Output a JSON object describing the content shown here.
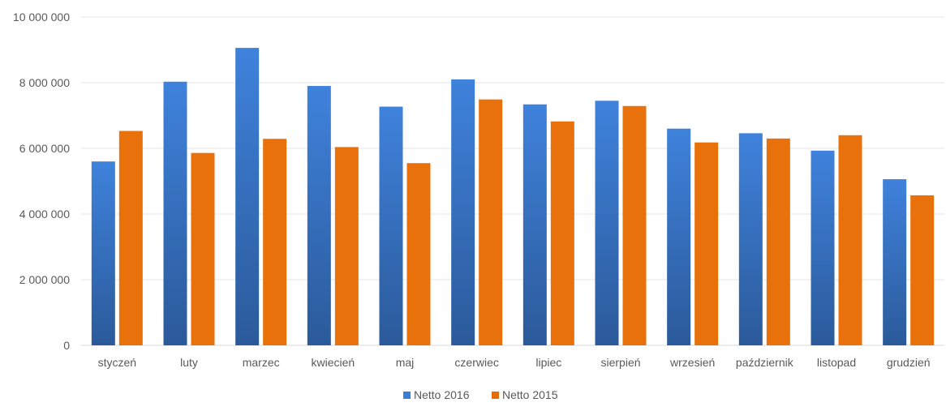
{
  "chart_data": {
    "type": "bar",
    "title": "",
    "xlabel": "",
    "ylabel": "",
    "categories": [
      "styczeń",
      "luty",
      "marzec",
      "kwiecień",
      "maj",
      "czerwiec",
      "lipiec",
      "sierpień",
      "wrzesień",
      "październik",
      "listopad",
      "grudzień"
    ],
    "series": [
      {
        "name": "Netto 2016",
        "color": "#3b7dd8",
        "values": [
          5600000,
          8030000,
          9060000,
          7900000,
          7270000,
          8100000,
          7340000,
          7450000,
          6600000,
          6460000,
          5930000,
          5060000
        ]
      },
      {
        "name": "Netto 2015",
        "color": "#e46c0a",
        "values": [
          6530000,
          5860000,
          6290000,
          6040000,
          5550000,
          7490000,
          6820000,
          7290000,
          6180000,
          6300000,
          6400000,
          4570000
        ]
      }
    ],
    "y_ticks": [
      {
        "value": 0,
        "label": "0"
      },
      {
        "value": 2000000,
        "label": "2 000 000"
      },
      {
        "value": 4000000,
        "label": "4 000 000"
      },
      {
        "value": 6000000,
        "label": "6 000 000"
      },
      {
        "value": 8000000,
        "label": "8 000 000"
      },
      {
        "value": 10000000,
        "label": "10 000 000"
      }
    ],
    "ylim": [
      0,
      10000000
    ],
    "grid": true,
    "legend_position": "bottom"
  }
}
